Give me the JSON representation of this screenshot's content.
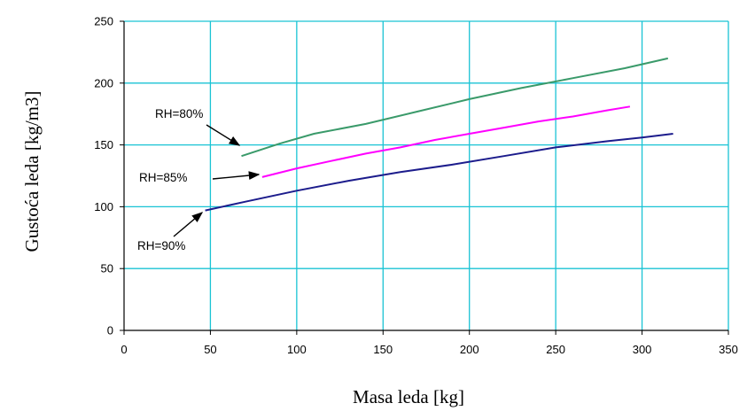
{
  "chart_data": {
    "type": "line",
    "xlabel": "Masa leda [kg]",
    "ylabel": "Gustoća leda [kg/m3]",
    "xlim": [
      0,
      350
    ],
    "ylim": [
      0,
      250
    ],
    "xticks": [
      0,
      50,
      100,
      150,
      200,
      250,
      300,
      350
    ],
    "yticks": [
      0,
      50,
      100,
      150,
      200,
      250
    ],
    "grid": true,
    "legend": "none",
    "series": [
      {
        "name": "RH=80%",
        "color": "#3a9a6a",
        "x": [
          68,
          90,
          110,
          140,
          170,
          200,
          230,
          260,
          290,
          315
        ],
        "y": [
          141,
          151,
          159,
          167,
          177,
          187,
          196,
          204,
          212,
          220
        ]
      },
      {
        "name": "RH=85%",
        "color": "#ff00ff",
        "x": [
          80,
          100,
          120,
          140,
          160,
          180,
          200,
          220,
          240,
          260,
          280,
          293
        ],
        "y": [
          124,
          131,
          137,
          143,
          148,
          154,
          159,
          164,
          169,
          173,
          178,
          181
        ]
      },
      {
        "name": "RH=90%",
        "color": "#1c1c8c",
        "x": [
          47,
          70,
          100,
          130,
          160,
          190,
          220,
          250,
          280,
          300,
          318
        ],
        "y": [
          97,
          104,
          113,
          121,
          128,
          134,
          141,
          148,
          153,
          156,
          159
        ]
      }
    ],
    "annotations": [
      {
        "text": "RH=80%",
        "series": 0
      },
      {
        "text": "RH=85%",
        "series": 1
      },
      {
        "text": "RH=90%",
        "series": 2
      }
    ]
  }
}
